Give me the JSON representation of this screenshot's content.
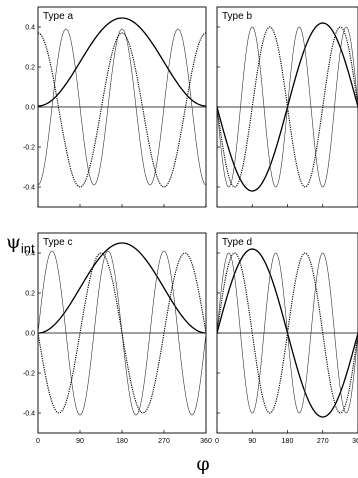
{
  "figure": {
    "ylabel_main": "ψ",
    "ylabel_sub": "int",
    "xlabel": "φ"
  },
  "chart_data": [
    {
      "type": "line",
      "title": "Type a",
      "xlim": [
        0,
        360
      ],
      "ylim": [
        -0.5,
        0.5
      ],
      "xticks": [
        0,
        90,
        180,
        270,
        360
      ],
      "yticks": [
        -0.4,
        -0.2,
        0.0,
        0.2,
        0.4
      ],
      "xtick_labels": [
        "",
        "",
        "",
        "",
        ""
      ],
      "ytick_labels": [
        "-0.4",
        "-0.2",
        "0.0",
        "0.2",
        "0.4"
      ],
      "curves": [
        {
          "style": "solid",
          "amplitude": 0.44,
          "k": 1,
          "shift": 180,
          "form": "bump",
          "offset": 0.005
        },
        {
          "style": "thin",
          "amplitude": 0.39,
          "k": 3,
          "shift": 180,
          "form": "cos",
          "offset": 0
        },
        {
          "style": "dotted",
          "amplitude": 0.385,
          "k": 2,
          "shift": 180,
          "form": "cos",
          "offset": -0.015
        }
      ]
    },
    {
      "type": "line",
      "title": "Type b",
      "xlim": [
        0,
        360
      ],
      "ylim": [
        -0.5,
        0.5
      ],
      "xticks": [
        0,
        90,
        180,
        270,
        360
      ],
      "yticks": [
        -0.4,
        -0.2,
        0.0,
        0.2,
        0.4
      ],
      "xtick_labels": [
        "",
        "",
        "",
        "",
        ""
      ],
      "ytick_labels": [
        "",
        "",
        "",
        "",
        ""
      ],
      "curves": [
        {
          "style": "solid",
          "amplitude": 0.42,
          "k": 1,
          "shift": 0,
          "form": "sin",
          "offset": 0,
          "sign": -1
        },
        {
          "style": "thin",
          "amplitude": 0.4,
          "k": 3,
          "shift": 0,
          "form": "sin",
          "offset": 0,
          "sign": -1
        },
        {
          "style": "dotted",
          "amplitude": 0.4,
          "k": 2,
          "shift": 0,
          "form": "sin",
          "offset": 0,
          "sign": -1
        }
      ]
    },
    {
      "type": "line",
      "title": "Type c",
      "xlim": [
        0,
        360
      ],
      "ylim": [
        -0.5,
        0.5
      ],
      "xticks": [
        0,
        90,
        180,
        270,
        360
      ],
      "yticks": [
        -0.4,
        -0.2,
        0.0,
        0.2,
        0.4
      ],
      "xtick_labels": [
        "0",
        "90",
        "180",
        "270",
        "360"
      ],
      "ytick_labels": [
        "-0.4",
        "-0.2",
        "0.0",
        "0.2",
        "0.4"
      ],
      "curves": [
        {
          "style": "solid",
          "amplitude": 0.45,
          "k": 1,
          "shift": 180,
          "form": "bump",
          "offset": 0
        },
        {
          "style": "thin",
          "amplitude": 0.41,
          "k": 3,
          "shift": 0,
          "form": "sin",
          "offset": 0,
          "sign": 1
        },
        {
          "style": "dotted",
          "amplitude": 0.4,
          "k": 2,
          "shift": 0,
          "form": "sin",
          "offset": 0,
          "sign": -1
        }
      ]
    },
    {
      "type": "line",
      "title": "Type d",
      "xlim": [
        0,
        360
      ],
      "ylim": [
        -0.5,
        0.5
      ],
      "xticks": [
        0,
        90,
        180,
        270,
        360
      ],
      "yticks": [
        -0.4,
        -0.2,
        0.0,
        0.2,
        0.4
      ],
      "xtick_labels": [
        "0",
        "90",
        "180",
        "270",
        "360"
      ],
      "ytick_labels": [
        "",
        "",
        "",
        "",
        ""
      ],
      "curves": [
        {
          "style": "solid",
          "amplitude": 0.42,
          "k": 1,
          "shift": 0,
          "form": "sin",
          "offset": 0,
          "sign": 1
        },
        {
          "style": "thin",
          "amplitude": 0.4,
          "k": 3,
          "shift": 0,
          "form": "sin",
          "offset": 0,
          "sign": 1
        },
        {
          "style": "dotted",
          "amplitude": 0.4,
          "k": 2,
          "shift": 0,
          "form": "sin",
          "offset": 0,
          "sign": 1
        }
      ]
    }
  ]
}
